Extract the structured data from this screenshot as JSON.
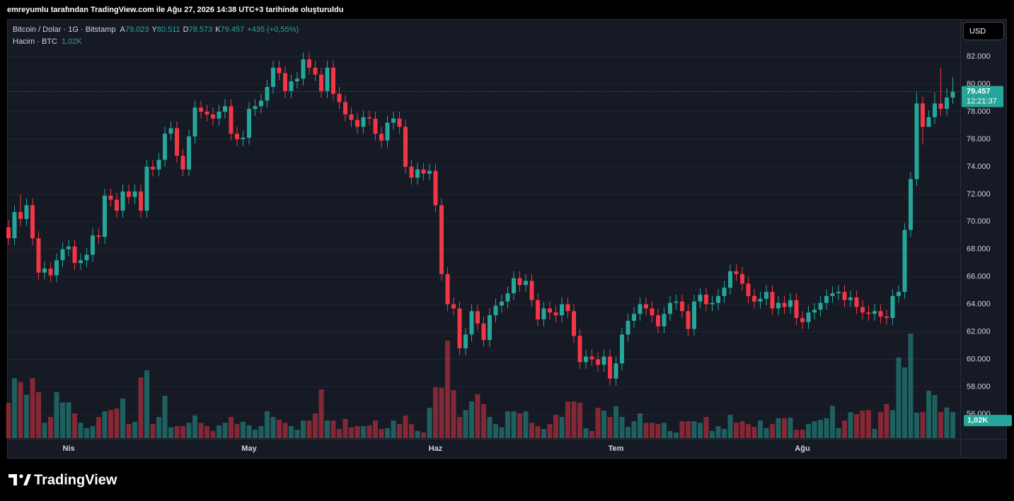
{
  "header": {
    "title": "emreyumlu tarafından TradingView.com ile Ağu 27, 2026 14:38 UTC+3 tarihinde oluşturuldu"
  },
  "chart_data": {
    "type": "candlestick",
    "symbol": "Bitcoin / Dolar · 1G · Bitstamp",
    "legend": [
      {
        "key": "A",
        "text": "79.023"
      },
      {
        "key": "Y",
        "text": "80.511"
      },
      {
        "key": "D",
        "text": "78.573"
      },
      {
        "key": "K",
        "text": "79.457"
      }
    ],
    "change": "+435 (+0,55%)",
    "volume_legend": {
      "name": "Hacim · BTC",
      "text": "1,02K"
    },
    "currency": "USD",
    "last_price_label": "79.457",
    "countdown": "12:21:37",
    "volume_last_label": "1,02K",
    "up_color": "#26a69a",
    "down_color": "#f23645",
    "ylim": [
      54270,
      84680
    ],
    "yticks": [
      {
        "value": 56000,
        "label": "56.000"
      },
      {
        "value": 58000,
        "label": "58.000"
      },
      {
        "value": 60000,
        "label": "60.000"
      },
      {
        "value": 62000,
        "label": "62.000"
      },
      {
        "value": 64000,
        "label": "64.000"
      },
      {
        "value": 66000,
        "label": "66.000"
      },
      {
        "value": 68000,
        "label": "68.000"
      },
      {
        "value": 70000,
        "label": "70.000"
      },
      {
        "value": 72000,
        "label": "72.000"
      },
      {
        "value": 74000,
        "label": "74.000"
      },
      {
        "value": 76000,
        "label": "76.000"
      },
      {
        "value": 78000,
        "label": "78.000"
      },
      {
        "value": 80000,
        "label": "80.000"
      },
      {
        "value": 82000,
        "label": "82.000"
      }
    ],
    "grid": true,
    "categories": [
      null,
      null,
      null,
      null,
      null,
      null,
      null,
      null,
      null,
      null,
      "Nis",
      null,
      null,
      null,
      null,
      null,
      null,
      null,
      null,
      null,
      null,
      null,
      null,
      null,
      null,
      null,
      null,
      null,
      null,
      null,
      null,
      null,
      null,
      null,
      null,
      null,
      null,
      null,
      null,
      null,
      "May",
      null,
      null,
      null,
      null,
      null,
      null,
      null,
      null,
      null,
      null,
      null,
      null,
      null,
      null,
      null,
      null,
      null,
      null,
      null,
      null,
      null,
      null,
      null,
      null,
      null,
      null,
      null,
      null,
      null,
      null,
      "Haz",
      null,
      null,
      null,
      null,
      null,
      null,
      null,
      null,
      null,
      null,
      null,
      null,
      null,
      null,
      null,
      null,
      null,
      null,
      null,
      null,
      null,
      null,
      null,
      null,
      null,
      null,
      null,
      null,
      null,
      "Tem",
      null,
      null,
      null,
      null,
      null,
      null,
      null,
      null,
      null,
      null,
      null,
      null,
      null,
      null,
      null,
      null,
      null,
      null,
      null,
      null,
      null,
      null,
      null,
      null,
      null,
      null,
      null,
      null,
      null,
      null,
      "Ağu",
      null,
      null,
      null,
      null,
      null,
      null,
      null,
      null,
      null,
      null,
      null,
      null,
      null,
      null,
      null,
      null,
      null,
      null,
      null,
      null,
      null,
      null,
      null,
      null,
      null
    ],
    "open": [
      69600,
      68800,
      70700,
      70200,
      71200,
      68800,
      66300,
      66600,
      66100,
      67200,
      68000,
      68200,
      67000,
      67200,
      67600,
      69000,
      68900,
      71900,
      71600,
      70800,
      72200,
      71800,
      72200,
      70800,
      74000,
      73800,
      74500,
      76400,
      76800,
      74800,
      73800,
      76200,
      78300,
      78000,
      77800,
      77500,
      78000,
      78400,
      76400,
      76000,
      76100,
      78200,
      78400,
      78800,
      79800,
      81200,
      80800,
      79500,
      80200,
      80400,
      81800,
      81200,
      80700,
      79500,
      81200,
      79300,
      78700,
      77800,
      77400,
      76900,
      77600,
      77500,
      76400,
      75900,
      77200,
      77500,
      76900,
      74000,
      73200,
      73800,
      73500,
      73700,
      71200,
      66200,
      64000,
      63700,
      60800,
      61800,
      63500,
      62600,
      61400,
      63200,
      63900,
      64200,
      64800,
      65900,
      65400,
      65700,
      64300,
      62900,
      63700,
      63400,
      63200,
      64000,
      63500,
      61700,
      59800,
      60200,
      60000,
      59600,
      60200,
      58600,
      59700,
      61800,
      62800,
      63300,
      64000,
      63700,
      63200,
      62400,
      63300,
      64100,
      64200,
      63500,
      62200,
      64200,
      64700,
      64000,
      64100,
      64600,
      65200,
      66400,
      66200,
      65500,
      64600,
      64200,
      64400,
      64900,
      63700,
      64100,
      63800,
      64300,
      63000,
      62700,
      63400,
      63600,
      64100,
      64600,
      64800,
      64900,
      64300,
      64500,
      63800,
      63400,
      63300,
      63500,
      63100,
      63000,
      64600,
      64900,
      69400,
      73100,
      78600,
      76900,
      77600,
      78600,
      78200,
      79023
    ],
    "high": [
      70100,
      71200,
      72000,
      71700,
      71700,
      69300,
      67100,
      67100,
      67700,
      68500,
      68700,
      68700,
      67700,
      68100,
      69500,
      69500,
      72400,
      72400,
      72100,
      72700,
      72700,
      72700,
      72700,
      74500,
      74500,
      75000,
      76900,
      77300,
      77300,
      75300,
      76700,
      78800,
      78800,
      78500,
      78300,
      78500,
      78900,
      78900,
      76900,
      76600,
      78700,
      78900,
      79300,
      80300,
      81700,
      81700,
      81300,
      80700,
      80900,
      82300,
      82300,
      81700,
      81200,
      81700,
      81700,
      79800,
      79200,
      78300,
      77900,
      78100,
      78100,
      78000,
      76900,
      77700,
      78000,
      78000,
      77400,
      74500,
      74300,
      74300,
      74200,
      74200,
      71700,
      66700,
      64500,
      64200,
      62300,
      64000,
      64000,
      63100,
      63700,
      64400,
      64700,
      65300,
      66400,
      66400,
      66200,
      66200,
      64800,
      64200,
      64200,
      63900,
      64500,
      64500,
      64000,
      62200,
      60700,
      60700,
      60500,
      60700,
      60700,
      60200,
      62300,
      63300,
      63800,
      64500,
      64500,
      64200,
      63700,
      63800,
      64600,
      64700,
      64700,
      64000,
      64700,
      65200,
      65200,
      64600,
      65100,
      65700,
      66900,
      66900,
      66700,
      66000,
      65100,
      64900,
      65400,
      65400,
      64600,
      64600,
      64800,
      64800,
      63500,
      63900,
      64100,
      64600,
      65100,
      65300,
      65400,
      65400,
      65000,
      65000,
      64300,
      63900,
      64000,
      64000,
      63600,
      65100,
      65400,
      69900,
      73600,
      79400,
      79100,
      78100,
      79400,
      81200,
      79700,
      80511
    ],
    "low": [
      68300,
      68300,
      69700,
      69700,
      68300,
      65800,
      65800,
      65600,
      65600,
      66700,
      67500,
      66500,
      66500,
      66700,
      67100,
      68400,
      68400,
      71100,
      70300,
      70300,
      71300,
      71300,
      70300,
      70300,
      73300,
      73300,
      74000,
      75900,
      74300,
      73300,
      73300,
      75700,
      77500,
      77300,
      77000,
      77000,
      77500,
      75900,
      75500,
      75500,
      75600,
      77700,
      77900,
      78300,
      79300,
      80300,
      79000,
      79000,
      79700,
      79900,
      80700,
      80200,
      79000,
      79000,
      78800,
      78200,
      77300,
      76900,
      76400,
      76400,
      77000,
      75900,
      75400,
      75400,
      76700,
      76400,
      73500,
      72700,
      72700,
      73000,
      73000,
      70700,
      65700,
      63500,
      63200,
      60300,
      60300,
      61300,
      62100,
      60900,
      60900,
      62700,
      63400,
      63700,
      64300,
      64900,
      64900,
      63800,
      62400,
      62400,
      62900,
      62700,
      62700,
      63000,
      61200,
      59300,
      59300,
      59500,
      59100,
      59100,
      58100,
      58100,
      59200,
      61300,
      62300,
      62800,
      63200,
      62700,
      61900,
      61900,
      62800,
      63600,
      63000,
      61700,
      61700,
      63700,
      63500,
      63500,
      63600,
      64100,
      64700,
      65700,
      65000,
      64100,
      63700,
      63700,
      63900,
      63200,
      63200,
      63300,
      63300,
      62500,
      62200,
      62200,
      62900,
      63100,
      63600,
      64100,
      64300,
      63800,
      63800,
      63300,
      62900,
      62800,
      62800,
      62600,
      62500,
      62500,
      64100,
      64400,
      68900,
      72600,
      75600,
      76900,
      77100,
      77700,
      77700,
      78573
    ],
    "close": [
      68800,
      70700,
      70200,
      71200,
      68800,
      66300,
      66600,
      66100,
      67200,
      68000,
      68200,
      67000,
      67200,
      67600,
      69000,
      68900,
      71900,
      71600,
      70800,
      72200,
      71800,
      72200,
      70800,
      74000,
      73800,
      74500,
      76400,
      76800,
      74800,
      73800,
      76200,
      78300,
      78000,
      77800,
      77500,
      78000,
      78400,
      76400,
      76000,
      76100,
      78200,
      78400,
      78800,
      79800,
      81200,
      80800,
      79500,
      80200,
      80400,
      81800,
      81200,
      80700,
      79500,
      81200,
      79300,
      78700,
      77800,
      77400,
      76900,
      77600,
      77500,
      76400,
      75900,
      77200,
      77500,
      76900,
      74000,
      73200,
      73800,
      73500,
      73700,
      71200,
      66200,
      64000,
      63700,
      60800,
      61800,
      63500,
      62600,
      61400,
      63200,
      63900,
      64200,
      64800,
      65900,
      65400,
      65700,
      64300,
      62900,
      63700,
      63400,
      63200,
      64000,
      63500,
      61700,
      59800,
      60200,
      60000,
      59600,
      60200,
      58600,
      59700,
      61800,
      62800,
      63300,
      64000,
      63700,
      63200,
      62400,
      63300,
      64100,
      64200,
      63500,
      62200,
      64200,
      64700,
      64000,
      64100,
      64600,
      65200,
      66400,
      66200,
      65500,
      64600,
      64200,
      64400,
      64900,
      63700,
      64100,
      63800,
      64300,
      63000,
      62700,
      63400,
      63600,
      64100,
      64600,
      64800,
      64900,
      64300,
      64500,
      63800,
      63400,
      63300,
      63500,
      63100,
      63000,
      64600,
      64900,
      69400,
      73100,
      78600,
      76900,
      77600,
      78600,
      78200,
      79023,
      79457
    ],
    "volume": [
      1380,
      2350,
      2200,
      1700,
      2350,
      1800,
      600,
      830,
      1800,
      1400,
      1400,
      970,
      600,
      390,
      470,
      830,
      1050,
      1100,
      1160,
      1550,
      550,
      640,
      2380,
      2660,
      550,
      830,
      1660,
      420,
      470,
      470,
      600,
      890,
      600,
      470,
      280,
      500,
      600,
      830,
      550,
      640,
      500,
      330,
      470,
      1050,
      830,
      720,
      600,
      470,
      330,
      690,
      690,
      970,
      1910,
      690,
      690,
      360,
      750,
      420,
      470,
      470,
      500,
      690,
      360,
      390,
      690,
      550,
      890,
      550,
      280,
      220,
      1190,
      2000,
      1970,
      3820,
      1880,
      830,
      1100,
      1440,
      1720,
      1330,
      830,
      550,
      420,
      1050,
      1050,
      970,
      1050,
      600,
      470,
      360,
      550,
      910,
      830,
      1440,
      1440,
      1380,
      390,
      280,
      1190,
      1080,
      830,
      1250,
      830,
      440,
      660,
      970,
      600,
      600,
      550,
      600,
      280,
      220,
      660,
      660,
      660,
      600,
      830,
      280,
      470,
      360,
      910,
      600,
      660,
      550,
      440,
      690,
      390,
      550,
      780,
      780,
      800,
      330,
      330,
      550,
      660,
      720,
      780,
      1270,
      390,
      690,
      1020,
      940,
      1080,
      1100,
      360,
      1020,
      1330,
      1100,
      3160,
      2770,
      4100,
      1000,
      1020,
      1860,
      1690,
      1020,
      1200,
      1020
    ]
  },
  "logo": "TradingView"
}
